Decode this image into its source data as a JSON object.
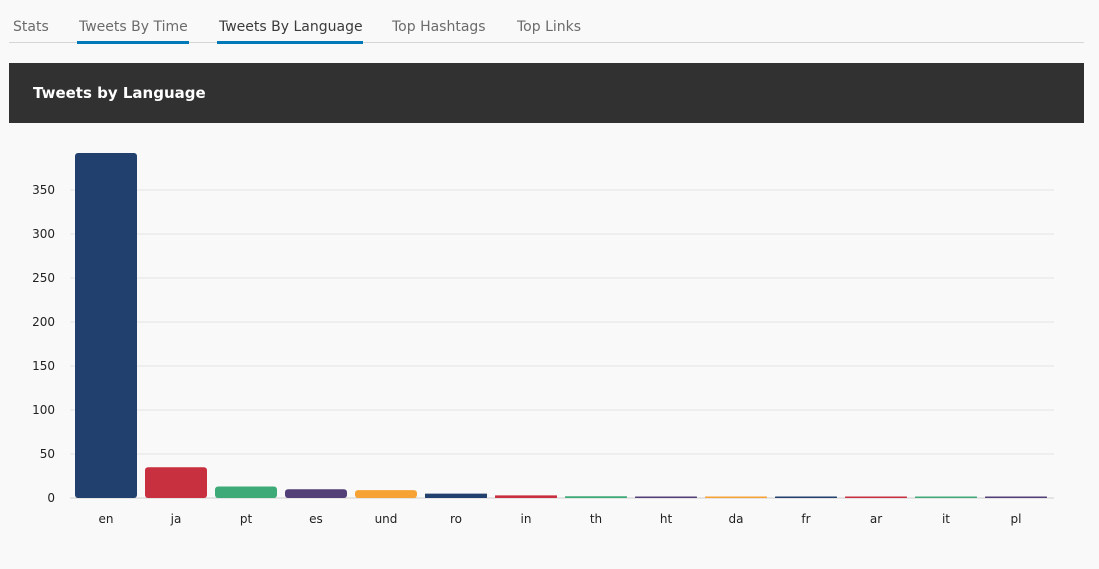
{
  "tabs": [
    {
      "label": "Stats",
      "active": false
    },
    {
      "label": "Tweets By Time",
      "active": false,
      "underlined": true
    },
    {
      "label": "Tweets By Language",
      "active": true,
      "underlined": true
    },
    {
      "label": "Top Hashtags",
      "active": false
    },
    {
      "label": "Top Links",
      "active": false
    }
  ],
  "panel": {
    "title": "Tweets by Language"
  },
  "colors": {
    "tab_underline": "#0079b8",
    "header_bg": "#313131",
    "bar_palette": [
      "#22406d",
      "#c8303f",
      "#3daa78",
      "#523f77",
      "#f7a234"
    ]
  },
  "chart_data": {
    "type": "bar",
    "title": "",
    "xlabel": "",
    "ylabel": "",
    "categories": [
      "en",
      "ja",
      "pt",
      "es",
      "und",
      "ro",
      "in",
      "th",
      "ht",
      "da",
      "fr",
      "ar",
      "it",
      "pl"
    ],
    "values": [
      392,
      35,
      13,
      10,
      9,
      5,
      3,
      2,
      1,
      1,
      1,
      1,
      1,
      1
    ],
    "ylim": [
      0,
      392
    ],
    "yticks": [
      0,
      50,
      100,
      150,
      200,
      250,
      300,
      350
    ],
    "grid": true
  }
}
